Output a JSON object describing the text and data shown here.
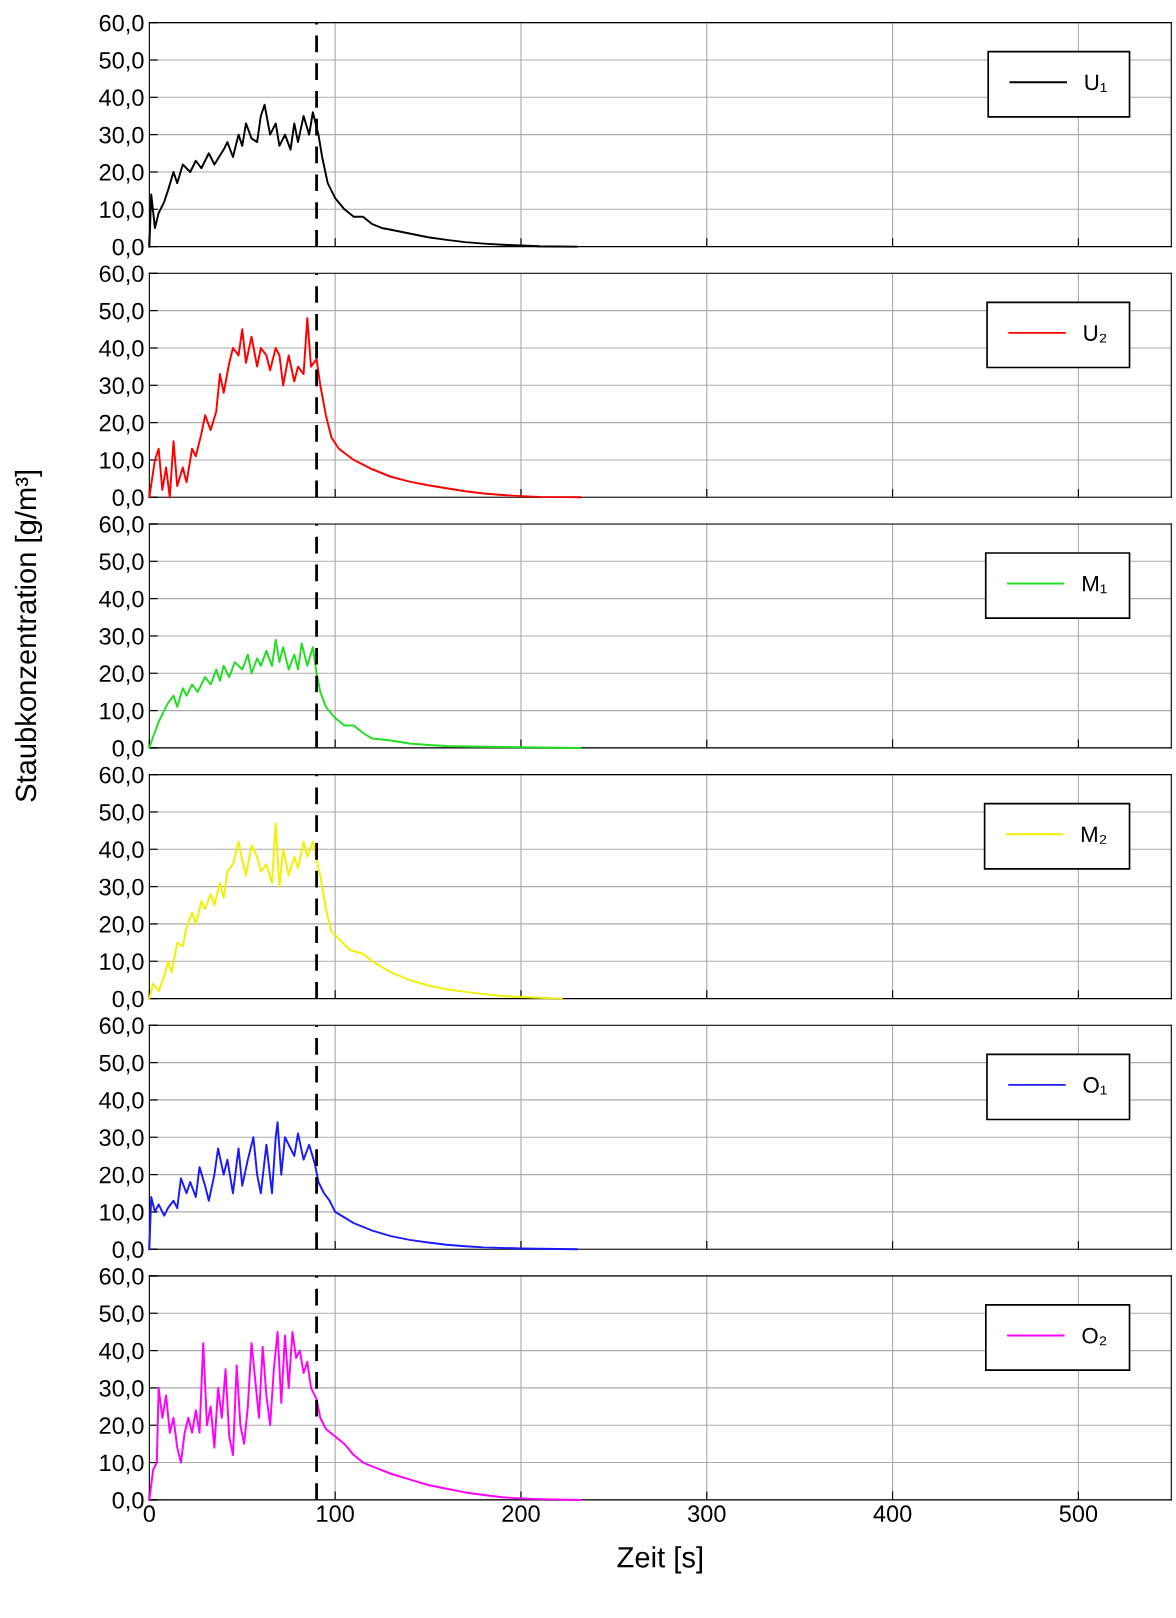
{
  "chart_data": [
    {
      "type": "line",
      "xlim": [
        0,
        550
      ],
      "xticks": [
        0,
        100,
        200,
        300,
        400,
        500
      ],
      "ylim": [
        0,
        60
      ],
      "yticks": [
        {
          "value": 0,
          "label": "0,0"
        },
        {
          "value": 10,
          "label": "10,0"
        },
        {
          "value": 20,
          "label": "20,0"
        },
        {
          "value": 30,
          "label": "30,0"
        },
        {
          "value": 40,
          "label": "40,0"
        },
        {
          "value": 50,
          "label": "50,0"
        },
        {
          "value": 60,
          "label": "60,0"
        }
      ],
      "grid": true,
      "legend": "top right",
      "tick_labels": "y",
      "ref_lines": [
        {
          "axis": "x",
          "value": 90,
          "color": "#000000",
          "line_style": "dashed"
        }
      ],
      "series": [
        {
          "name": "U₁",
          "color": "#000000",
          "x": [
            0,
            1,
            3,
            5,
            8,
            10,
            13,
            15,
            18,
            22,
            25,
            28,
            32,
            35,
            40,
            42,
            45,
            48,
            50,
            52,
            55,
            58,
            60,
            62,
            65,
            68,
            70,
            73,
            76,
            78,
            80,
            83,
            86,
            88,
            91,
            93,
            96,
            100,
            105,
            110,
            115,
            120,
            125,
            130,
            140,
            150,
            160,
            170,
            180,
            190,
            200,
            210,
            230
          ],
          "values": [
            0,
            14,
            5,
            9,
            12,
            15,
            20,
            17,
            22,
            20,
            23,
            21,
            25,
            22,
            26,
            28,
            24,
            30,
            27,
            33,
            29,
            28,
            35,
            38,
            30,
            33,
            27,
            30,
            26,
            33,
            28,
            35,
            30,
            36,
            30,
            24,
            17,
            13,
            10,
            8,
            8,
            6,
            5,
            4.5,
            3.5,
            2.5,
            1.8,
            1.2,
            0.8,
            0.5,
            0.3,
            0.1,
            0
          ]
        }
      ]
    },
    {
      "type": "line",
      "xlim": [
        0,
        550
      ],
      "xticks": [
        0,
        100,
        200,
        300,
        400,
        500
      ],
      "ylim": [
        0,
        60
      ],
      "yticks": [
        {
          "value": 0,
          "label": "0,0"
        },
        {
          "value": 10,
          "label": "10,0"
        },
        {
          "value": 20,
          "label": "20,0"
        },
        {
          "value": 30,
          "label": "30,0"
        },
        {
          "value": 40,
          "label": "40,0"
        },
        {
          "value": 50,
          "label": "50,0"
        },
        {
          "value": 60,
          "label": "60,0"
        }
      ],
      "grid": true,
      "legend": "top right",
      "tick_labels": "y",
      "ref_lines": [
        {
          "axis": "x",
          "value": 90,
          "color": "#000000",
          "line_style": "dashed"
        }
      ],
      "series": [
        {
          "name": "U₂",
          "color": "#ff0000",
          "x": [
            0,
            3,
            5,
            7,
            9,
            11,
            13,
            15,
            18,
            20,
            23,
            25,
            28,
            30,
            33,
            36,
            38,
            40,
            43,
            45,
            48,
            50,
            52,
            55,
            58,
            60,
            63,
            65,
            68,
            70,
            72,
            75,
            78,
            80,
            83,
            85,
            87,
            90,
            92,
            95,
            98,
            102,
            110,
            120,
            130,
            140,
            150,
            160,
            170,
            180,
            190,
            200,
            210,
            232
          ],
          "values": [
            0,
            10,
            13,
            2,
            8,
            0,
            15,
            3,
            8,
            4,
            13,
            11,
            17,
            22,
            18,
            23,
            33,
            28,
            36,
            40,
            38,
            45,
            36,
            43,
            35,
            40,
            38,
            34,
            40,
            38,
            30,
            38,
            31,
            35,
            33,
            48,
            35,
            37,
            30,
            22,
            16,
            13,
            10,
            7.5,
            5.5,
            4.2,
            3.2,
            2.4,
            1.6,
            1.0,
            0.6,
            0.3,
            0.1,
            0
          ]
        }
      ]
    },
    {
      "type": "line",
      "xlim": [
        0,
        550
      ],
      "xticks": [
        0,
        100,
        200,
        300,
        400,
        500
      ],
      "ylim": [
        0,
        60
      ],
      "yticks": [
        {
          "value": 0,
          "label": "0,0"
        },
        {
          "value": 10,
          "label": "10,0"
        },
        {
          "value": 20,
          "label": "20,0"
        },
        {
          "value": 30,
          "label": "30,0"
        },
        {
          "value": 40,
          "label": "40,0"
        },
        {
          "value": 50,
          "label": "50,0"
        },
        {
          "value": 60,
          "label": "60,0"
        }
      ],
      "grid": true,
      "legend": "top right",
      "tick_labels": "y",
      "ref_lines": [
        {
          "axis": "x",
          "value": 90,
          "color": "#000000",
          "line_style": "dashed"
        }
      ],
      "ylabel": "Staubkonzentration [g/m³]",
      "series": [
        {
          "name": "M₁",
          "color": "#22dd22",
          "x": [
            0,
            2,
            5,
            8,
            10,
            13,
            15,
            18,
            20,
            23,
            26,
            30,
            33,
            36,
            38,
            40,
            43,
            46,
            50,
            53,
            55,
            58,
            60,
            63,
            66,
            68,
            70,
            72,
            75,
            78,
            80,
            82,
            85,
            88,
            90,
            92,
            95,
            100,
            105,
            110,
            115,
            120,
            130,
            140,
            150,
            160,
            180,
            200,
            232
          ],
          "values": [
            0,
            3,
            7,
            10,
            12,
            14,
            11,
            16,
            14,
            17,
            15,
            19,
            17,
            21,
            18,
            22,
            19,
            23,
            21,
            25,
            20,
            24,
            22,
            26,
            22,
            29,
            23,
            27,
            21,
            25,
            21,
            28,
            22,
            27,
            20,
            15,
            11,
            8,
            6,
            6,
            4,
            2.5,
            2,
            1.2,
            0.8,
            0.5,
            0.3,
            0.2,
            0
          ]
        }
      ]
    },
    {
      "type": "line",
      "xlim": [
        0,
        550
      ],
      "xticks": [
        0,
        100,
        200,
        300,
        400,
        500
      ],
      "ylim": [
        0,
        60
      ],
      "yticks": [
        {
          "value": 0,
          "label": "0,0"
        },
        {
          "value": 10,
          "label": "10,0"
        },
        {
          "value": 20,
          "label": "20,0"
        },
        {
          "value": 30,
          "label": "30,0"
        },
        {
          "value": 40,
          "label": "40,0"
        },
        {
          "value": 50,
          "label": "50,0"
        },
        {
          "value": 60,
          "label": "60,0"
        }
      ],
      "grid": true,
      "legend": "top right",
      "tick_labels": "y",
      "ref_lines": [
        {
          "axis": "x",
          "value": 90,
          "color": "#000000",
          "line_style": "dashed"
        }
      ],
      "series": [
        {
          "name": "M₂",
          "color": "#f0f000",
          "x": [
            0,
            2,
            5,
            8,
            10,
            12,
            15,
            18,
            20,
            23,
            25,
            28,
            30,
            33,
            35,
            38,
            40,
            42,
            45,
            48,
            50,
            52,
            55,
            58,
            60,
            63,
            66,
            68,
            70,
            72,
            75,
            78,
            80,
            83,
            85,
            88,
            90,
            92,
            95,
            98,
            102,
            108,
            115,
            120,
            130,
            140,
            150,
            160,
            170,
            180,
            190,
            200,
            210,
            222
          ],
          "values": [
            0,
            4,
            2,
            6,
            10,
            7,
            15,
            14,
            19,
            23,
            20,
            26,
            24,
            28,
            25,
            31,
            27,
            34,
            36,
            42,
            37,
            33,
            41,
            38,
            34,
            36,
            31,
            47,
            30,
            40,
            33,
            38,
            35,
            42,
            38,
            42,
            37,
            33,
            24,
            18,
            16,
            13,
            12,
            10,
            7,
            5,
            3.5,
            2.5,
            1.8,
            1.2,
            0.7,
            0.4,
            0.2,
            0
          ]
        }
      ]
    },
    {
      "type": "line",
      "xlim": [
        0,
        550
      ],
      "xticks": [
        0,
        100,
        200,
        300,
        400,
        500
      ],
      "ylim": [
        0,
        60
      ],
      "yticks": [
        {
          "value": 0,
          "label": "0,0"
        },
        {
          "value": 10,
          "label": "10,0"
        },
        {
          "value": 20,
          "label": "20,0"
        },
        {
          "value": 30,
          "label": "30,0"
        },
        {
          "value": 40,
          "label": "40,0"
        },
        {
          "value": 50,
          "label": "50,0"
        },
        {
          "value": 60,
          "label": "60,0"
        }
      ],
      "grid": true,
      "legend": "top right",
      "tick_labels": "y",
      "ref_lines": [
        {
          "axis": "x",
          "value": 90,
          "color": "#000000",
          "line_style": "dashed"
        }
      ],
      "series": [
        {
          "name": "O₁",
          "color": "#1a1aff",
          "x": [
            0,
            1,
            3,
            5,
            8,
            10,
            13,
            15,
            17,
            20,
            22,
            25,
            27,
            30,
            32,
            35,
            37,
            40,
            42,
            45,
            48,
            50,
            53,
            56,
            58,
            60,
            63,
            66,
            68,
            69,
            71,
            73,
            76,
            78,
            80,
            83,
            86,
            89,
            91,
            94,
            97,
            100,
            110,
            120,
            130,
            140,
            150,
            160,
            170,
            180,
            200,
            230
          ],
          "values": [
            0,
            14,
            10,
            12,
            9,
            11,
            13,
            11,
            19,
            15,
            18,
            14,
            22,
            17,
            13,
            20,
            27,
            20,
            24,
            15,
            27,
            17,
            24,
            30,
            20,
            15,
            28,
            15,
            30,
            34,
            20,
            30,
            27,
            25,
            31,
            24,
            28,
            23,
            18,
            15,
            13,
            10,
            7,
            5,
            3.5,
            2.5,
            1.8,
            1.2,
            0.8,
            0.5,
            0.2,
            0
          ]
        }
      ]
    },
    {
      "type": "line",
      "xlabel": "Zeit [s]",
      "xlim": [
        0,
        550
      ],
      "xticks": [
        0,
        100,
        200,
        300,
        400,
        500
      ],
      "ylim": [
        0,
        60
      ],
      "yticks": [
        {
          "value": 0,
          "label": "0,0"
        },
        {
          "value": 10,
          "label": "10,0"
        },
        {
          "value": 20,
          "label": "20,0"
        },
        {
          "value": 30,
          "label": "30,0"
        },
        {
          "value": 40,
          "label": "40,0"
        },
        {
          "value": 50,
          "label": "50,0"
        },
        {
          "value": 60,
          "label": "60,0"
        }
      ],
      "grid": true,
      "legend": "top right",
      "ref_lines": [
        {
          "axis": "x",
          "value": 90,
          "color": "#000000",
          "line_style": "dashed"
        }
      ],
      "series": [
        {
          "name": "O₂",
          "color": "#ff00ff",
          "x": [
            0,
            2,
            4,
            5,
            7,
            9,
            11,
            13,
            15,
            17,
            19,
            21,
            23,
            25,
            27,
            29,
            31,
            33,
            35,
            37,
            39,
            41,
            43,
            45,
            47,
            49,
            51,
            53,
            55,
            57,
            59,
            61,
            63,
            65,
            67,
            69,
            71,
            73,
            75,
            77,
            79,
            81,
            83,
            85,
            87,
            90,
            92,
            95,
            100,
            105,
            110,
            115,
            120,
            130,
            140,
            150,
            160,
            170,
            180,
            190,
            200,
            210,
            232
          ],
          "values": [
            0,
            8,
            10,
            30,
            22,
            28,
            18,
            22,
            14,
            10,
            18,
            22,
            18,
            24,
            18,
            42,
            20,
            25,
            14,
            30,
            22,
            35,
            17,
            12,
            36,
            20,
            15,
            25,
            42,
            32,
            22,
            41,
            28,
            20,
            35,
            45,
            26,
            44,
            30,
            45,
            38,
            40,
            34,
            37,
            30,
            27,
            22,
            19,
            17,
            15,
            12,
            10,
            9,
            7,
            5.5,
            4,
            3,
            2,
            1.3,
            0.7,
            0.4,
            0.2,
            0
          ]
        }
      ]
    }
  ]
}
